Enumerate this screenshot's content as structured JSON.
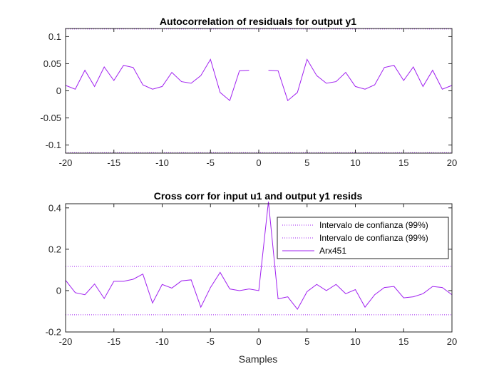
{
  "chart_data": [
    {
      "type": "line",
      "title": "Autocorrelation of residuals for output y1",
      "xlabel": "",
      "ylabel": "",
      "xlim": [
        -20,
        20
      ],
      "ylim": [
        -0.115,
        0.115
      ],
      "xticks": [
        -20,
        -15,
        -10,
        -5,
        0,
        5,
        10,
        15,
        20
      ],
      "yticks": [
        0.1,
        0.05,
        0,
        -0.05,
        -0.1
      ],
      "ytick_labels": [
        "0.1",
        "0.05",
        "0",
        "-0.05",
        "-0.1"
      ],
      "confidence_bound": 0.114,
      "grid": false,
      "series": [
        {
          "color": "#a020f0",
          "x": [
            -20,
            -19,
            -18,
            -17,
            -16,
            -15,
            -14,
            -13,
            -12,
            -11,
            -10,
            -9,
            -8,
            -7,
            -6,
            -5,
            -4,
            -3,
            -2,
            -1,
            0,
            1,
            2,
            3,
            4,
            5,
            6,
            7,
            8,
            9,
            10,
            11,
            12,
            13,
            14,
            15,
            16,
            17,
            18,
            19,
            20
          ],
          "values": [
            0.01,
            0.003,
            0.038,
            0.008,
            0.044,
            0.019,
            0.047,
            0.043,
            0.011,
            0.003,
            0.008,
            0.034,
            0.017,
            0.014,
            0.028,
            0.058,
            -0.003,
            -0.018,
            0.037,
            0.038,
            null,
            0.038,
            0.037,
            -0.018,
            -0.003,
            0.058,
            0.028,
            0.014,
            0.017,
            0.034,
            0.008,
            0.003,
            0.011,
            0.043,
            0.047,
            0.019,
            0.044,
            0.008,
            0.038,
            0.003,
            0.01
          ]
        }
      ]
    },
    {
      "type": "line",
      "title": "Cross corr for input u1 and output y1 resids",
      "xlabel": "Samples",
      "ylabel": "",
      "xlim": [
        -20,
        20
      ],
      "ylim": [
        -0.2,
        0.42
      ],
      "xticks": [
        -20,
        -15,
        -10,
        -5,
        0,
        5,
        10,
        15,
        20
      ],
      "yticks": [
        0.4,
        0.2,
        0,
        -0.2
      ],
      "ytick_labels": [
        "0.4",
        "0.2",
        "0",
        "-0.2"
      ],
      "confidence_bound": 0.117,
      "grid": false,
      "legend_position": "top-right",
      "legend": [
        "Intervalo de confianza (99%)",
        "Intervalo de confianza (99%)",
        "Arx451"
      ],
      "series": [
        {
          "name": "Arx451",
          "color": "#a020f0",
          "x": [
            -20,
            -19,
            -18,
            -17,
            -16,
            -15,
            -14,
            -13,
            -12,
            -11,
            -10,
            -9,
            -8,
            -7,
            -6,
            -5,
            -4,
            -3,
            -2,
            -1,
            0,
            1,
            2,
            3,
            4,
            5,
            6,
            7,
            8,
            9,
            10,
            11,
            12,
            13,
            14,
            15,
            16,
            17,
            18,
            19,
            20
          ],
          "values": [
            0.05,
            -0.01,
            -0.02,
            0.032,
            -0.038,
            0.045,
            0.045,
            0.055,
            0.08,
            -0.06,
            0.03,
            0.012,
            0.047,
            0.052,
            -0.08,
            0.015,
            0.088,
            0.008,
            0,
            0.008,
            0,
            0.43,
            -0.04,
            -0.03,
            -0.09,
            -0.005,
            0.03,
            0,
            0.03,
            -0.015,
            0.005,
            -0.08,
            -0.02,
            0.015,
            0.02,
            -0.035,
            -0.03,
            -0.015,
            0.02,
            0.015,
            -0.02
          ]
        }
      ]
    }
  ],
  "colors": {
    "series": "#a020f0",
    "confidence": "#a020f0",
    "axes": "#262626",
    "background": "#ffffff"
  }
}
